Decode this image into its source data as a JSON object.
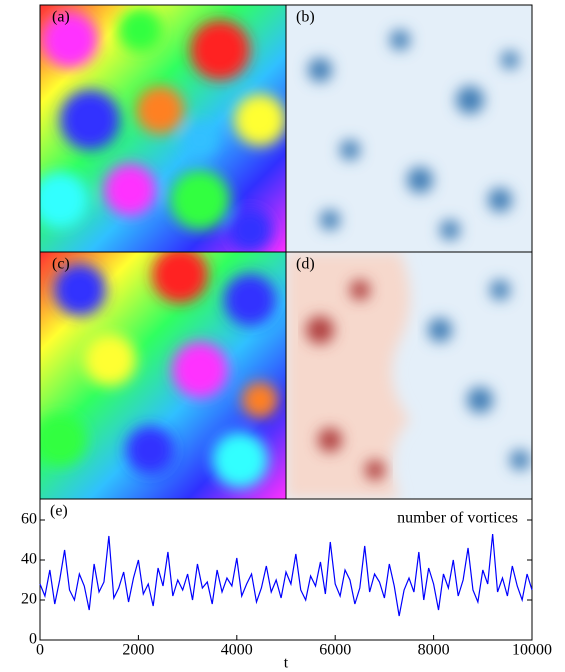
{
  "panels": [
    {
      "label": "(a)"
    },
    {
      "label": "(b)"
    },
    {
      "label": "(c)"
    },
    {
      "label": "(d)"
    }
  ],
  "chart_data": {
    "type": "line",
    "label": "(e)",
    "annotation": "number of vortices",
    "x_label": "t",
    "xlim": [
      0,
      10000
    ],
    "xticks": [
      0,
      2000,
      4000,
      6000,
      8000,
      10000
    ],
    "ylim": [
      0,
      70
    ],
    "yticks": [
      0,
      20,
      40,
      60
    ],
    "x": [
      0,
      100,
      200,
      300,
      400,
      500,
      600,
      700,
      800,
      900,
      1000,
      1100,
      1200,
      1300,
      1400,
      1500,
      1600,
      1700,
      1800,
      1900,
      2000,
      2100,
      2200,
      2300,
      2400,
      2500,
      2600,
      2700,
      2800,
      2900,
      3000,
      3100,
      3200,
      3300,
      3400,
      3500,
      3600,
      3700,
      3800,
      3900,
      4000,
      4100,
      4200,
      4300,
      4400,
      4500,
      4600,
      4700,
      4800,
      4900,
      5000,
      5100,
      5200,
      5300,
      5400,
      5500,
      5600,
      5700,
      5800,
      5900,
      6000,
      6100,
      6200,
      6300,
      6400,
      6500,
      6600,
      6700,
      6800,
      6900,
      7000,
      7100,
      7200,
      7300,
      7400,
      7500,
      7600,
      7700,
      7800,
      7900,
      8000,
      8100,
      8200,
      8300,
      8400,
      8500,
      8600,
      8700,
      8800,
      8900,
      9000,
      9100,
      9200,
      9300,
      9400,
      9500,
      9600,
      9700,
      9800,
      9900,
      10000
    ],
    "series": [
      {
        "color": "#0000ff",
        "values": [
          28,
          22,
          35,
          18,
          30,
          45,
          25,
          20,
          33,
          27,
          15,
          38,
          24,
          29,
          52,
          21,
          26,
          34,
          19,
          31,
          40,
          23,
          28,
          17,
          36,
          27,
          44,
          22,
          30,
          25,
          33,
          20,
          38,
          26,
          29,
          18,
          35,
          24,
          31,
          27,
          41,
          22,
          28,
          33,
          19,
          26,
          37,
          24,
          30,
          21,
          34,
          28,
          43,
          25,
          20,
          32,
          27,
          39,
          23,
          49,
          28,
          22,
          35,
          30,
          18,
          26,
          47,
          24,
          33,
          29,
          21,
          38,
          27,
          12,
          25,
          31,
          24,
          44,
          20,
          36,
          28,
          15,
          33,
          26,
          40,
          22,
          30,
          46,
          25,
          19,
          35,
          28,
          53,
          24,
          31,
          22,
          37,
          27,
          20,
          33,
          25
        ]
      }
    ]
  }
}
